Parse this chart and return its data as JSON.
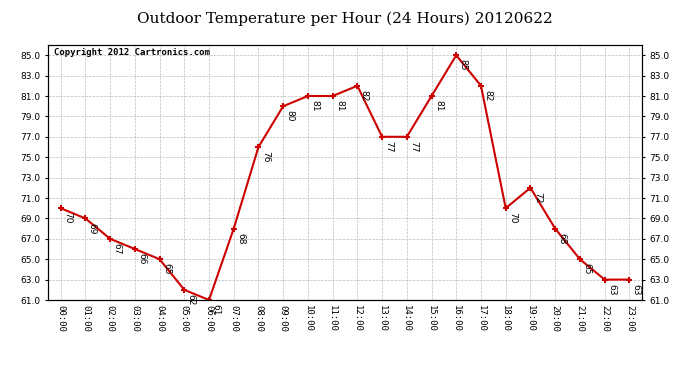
{
  "title": "Outdoor Temperature per Hour (24 Hours) 20120622",
  "copyright_text": "Copyright 2012 Cartronics.com",
  "hours": [
    0,
    1,
    2,
    3,
    4,
    5,
    6,
    7,
    8,
    9,
    10,
    11,
    12,
    13,
    14,
    15,
    16,
    17,
    18,
    19,
    20,
    21,
    22,
    23
  ],
  "x_labels": [
    "00:00",
    "01:00",
    "02:00",
    "03:00",
    "04:00",
    "05:00",
    "06:00",
    "07:00",
    "08:00",
    "09:00",
    "10:00",
    "11:00",
    "12:00",
    "13:00",
    "14:00",
    "15:00",
    "16:00",
    "17:00",
    "18:00",
    "19:00",
    "20:00",
    "21:00",
    "22:00",
    "23:00"
  ],
  "temperatures": [
    70,
    69,
    67,
    66,
    65,
    62,
    61,
    68,
    76,
    80,
    81,
    81,
    82,
    77,
    77,
    81,
    85,
    82,
    70,
    72,
    68,
    65,
    63,
    63
  ],
  "ylim": [
    61.0,
    86.0
  ],
  "yticks": [
    61.0,
    63.0,
    65.0,
    67.0,
    69.0,
    71.0,
    73.0,
    75.0,
    77.0,
    79.0,
    81.0,
    83.0,
    85.0
  ],
  "line_color": "#cc0000",
  "marker_color": "#cc0000",
  "bg_color": "#ffffff",
  "grid_color": "#bbbbbb",
  "title_fontsize": 11,
  "label_fontsize": 6.5,
  "annotation_fontsize": 6.5,
  "copyright_fontsize": 6.5
}
